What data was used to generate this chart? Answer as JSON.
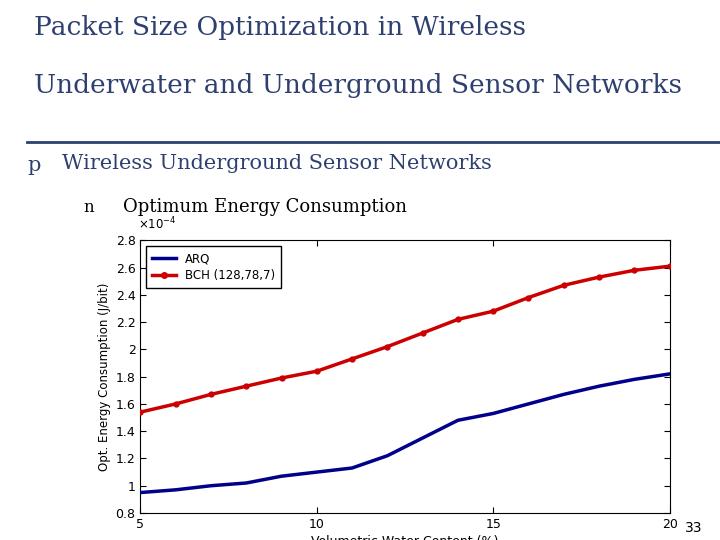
{
  "title_line1": "Packet Size Optimization in Wireless",
  "title_line2": "Underwater and Underground Sensor Networks",
  "title_color": "#2E4070",
  "bullet_text": "Wireless Underground Sensor Networks",
  "sub_bullet_text": "Optimum Energy Consumption",
  "background_color": "#FFFFFF",
  "slide_left_bar_color": "#2E4070",
  "xlabel": "Volumetric Water Content (%)",
  "ylabel": "Opt. Energy Consumption (J/bit)",
  "x_data": [
    5,
    6,
    7,
    8,
    9,
    10,
    11,
    12,
    13,
    14,
    15,
    16,
    17,
    18,
    19,
    20
  ],
  "arq_y": [
    0.95,
    0.97,
    1.0,
    1.02,
    1.07,
    1.1,
    1.13,
    1.22,
    1.35,
    1.48,
    1.53,
    1.6,
    1.67,
    1.73,
    1.78,
    1.82
  ],
  "bch_y": [
    1.54,
    1.6,
    1.67,
    1.73,
    1.79,
    1.84,
    1.93,
    2.02,
    2.12,
    2.22,
    2.28,
    2.38,
    2.47,
    2.53,
    2.58,
    2.61
  ],
  "arq_color": "#00008B",
  "bch_color": "#CC0000",
  "ylim_raw": [
    0.8,
    2.8
  ],
  "xlim": [
    5,
    20
  ],
  "yticks_raw": [
    0.8,
    1.0,
    1.2,
    1.4,
    1.6,
    1.8,
    2.0,
    2.2,
    2.4,
    2.6,
    2.8
  ],
  "ytick_labels": [
    "0.8",
    "1",
    "1.2",
    "1.4",
    "1.6",
    "1.8",
    "2",
    "2.2",
    "2.4",
    "2.6",
    "2.8"
  ],
  "xticks": [
    5,
    10,
    15,
    20
  ],
  "page_number": "33",
  "legend_entries": [
    "ARQ",
    "BCH (128,78,7)"
  ],
  "title_fontsize": 19,
  "bullet_fontsize": 15,
  "sub_bullet_fontsize": 13
}
